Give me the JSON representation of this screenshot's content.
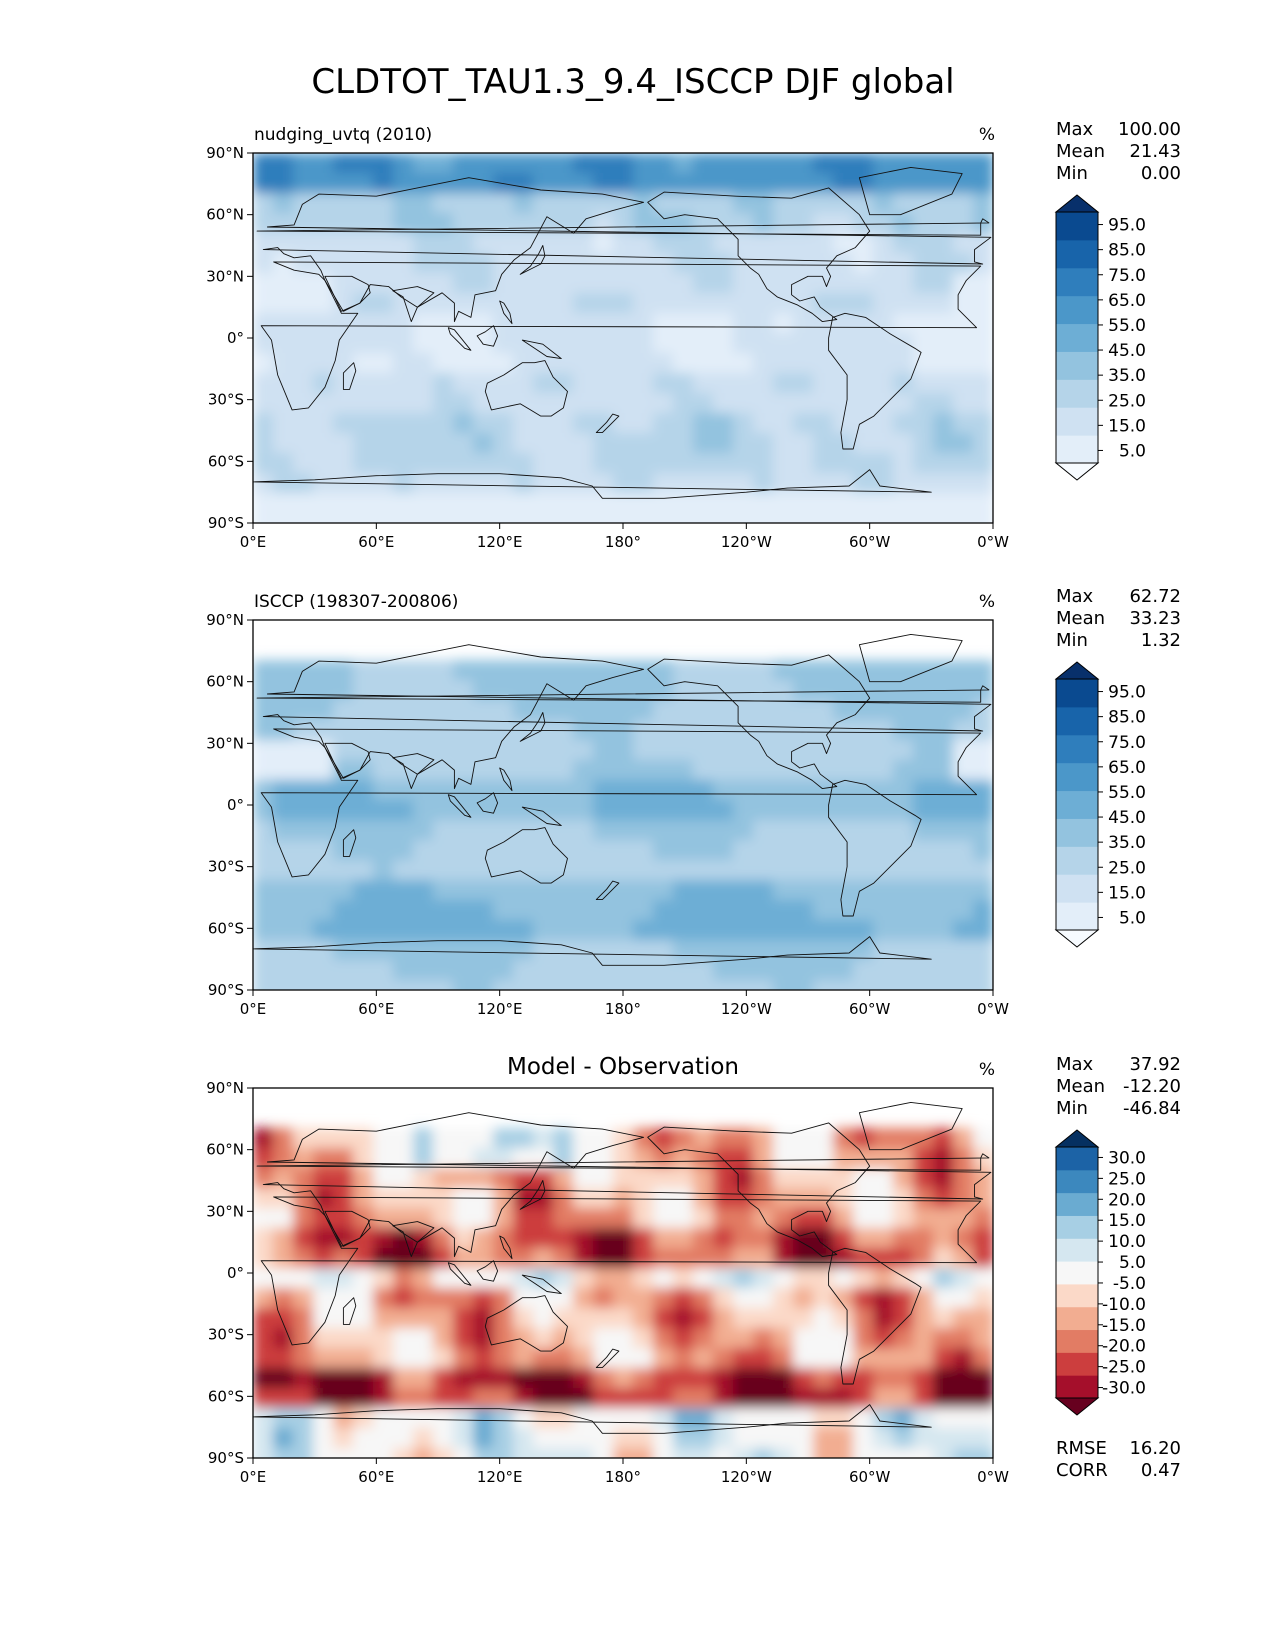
{
  "figure": {
    "title": "CLDTOT_TAU1.3_9.4_ISCCP DJF global"
  },
  "axes": {
    "lat_ticks": [
      "90°N",
      "60°N",
      "30°N",
      "0°",
      "30°S",
      "60°S",
      "90°S"
    ],
    "lon_ticks": [
      "0°E",
      "60°E",
      "120°E",
      "180°",
      "120°W",
      "60°W",
      "0°W"
    ]
  },
  "stats_labels": {
    "max": "Max",
    "mean": "Mean",
    "min": "Min",
    "rmse": "RMSE",
    "corr": "CORR"
  },
  "colors": {
    "blues": [
      "#f7fbff",
      "#e3eef9",
      "#cfe1f2",
      "#b5d4e9",
      "#93c3df",
      "#6daed5",
      "#4b97c9",
      "#2f7ebc",
      "#1864aa",
      "#0a4a90",
      "#08306b"
    ],
    "rdbu": [
      "#67001f",
      "#a50f2b",
      "#cc3e3e",
      "#e27c64",
      "#f2ad91",
      "#fbd9c8",
      "#f7f7f7",
      "#d5e7f0",
      "#a7cfe4",
      "#6aabd1",
      "#3c88be",
      "#1c63a6",
      "#053061"
    ]
  },
  "chart_data": [
    {
      "type": "heatmap",
      "subtitle": "nudging_uvtq (2010)",
      "units": "%",
      "stats": {
        "max": "100.00",
        "mean": "21.43",
        "min": "0.00"
      },
      "colorbar": {
        "palette": "blues",
        "labels": [
          "95.0",
          "85.0",
          "75.0",
          "65.0",
          "55.0",
          "45.0",
          "35.0",
          "25.0",
          "15.0",
          "5.0"
        ]
      },
      "xlim": [
        0,
        360
      ],
      "ylim": [
        -90,
        90
      ]
    },
    {
      "type": "heatmap",
      "subtitle": "ISCCP (198307-200806)",
      "units": "%",
      "stats": {
        "max": "62.72",
        "mean": "33.23",
        "min": "1.32"
      },
      "colorbar": {
        "palette": "blues",
        "labels": [
          "95.0",
          "85.0",
          "75.0",
          "65.0",
          "55.0",
          "45.0",
          "35.0",
          "25.0",
          "15.0",
          "5.0"
        ]
      },
      "xlim": [
        0,
        360
      ],
      "ylim": [
        -90,
        90
      ]
    },
    {
      "type": "heatmap",
      "title": "Model - Observation",
      "units": "%",
      "stats": {
        "max": "37.92",
        "mean": "-12.20",
        "min": "-46.84",
        "rmse": "16.20",
        "corr": "0.47"
      },
      "colorbar": {
        "palette": "rdbu",
        "labels": [
          "30.0",
          "25.0",
          "20.0",
          "15.0",
          "10.0",
          "5.0",
          "-5.0",
          "-10.0",
          "-15.0",
          "-20.0",
          "-25.0",
          "-30.0"
        ]
      },
      "xlim": [
        0,
        360
      ],
      "ylim": [
        -90,
        90
      ]
    }
  ]
}
